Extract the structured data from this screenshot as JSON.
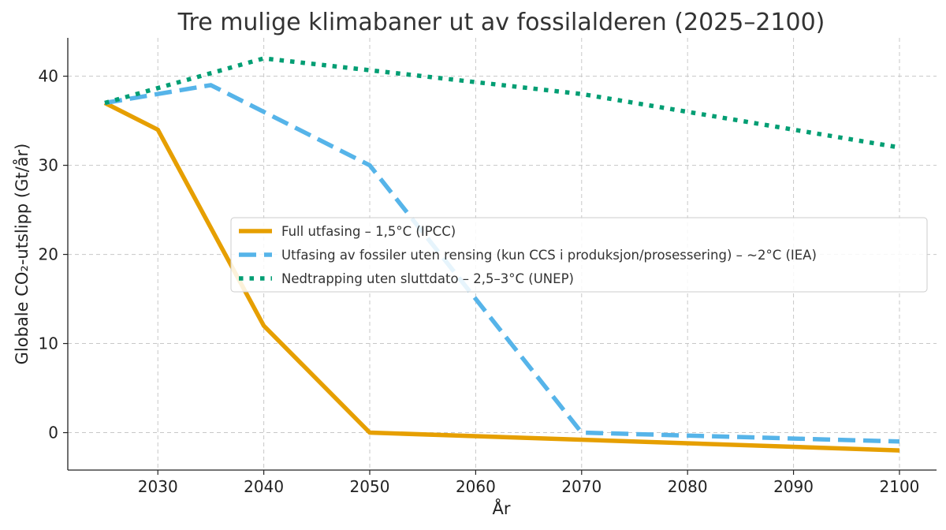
{
  "chart_data": {
    "type": "line",
    "title": "Tre mulige klimabaner ut av fossilalderen (2025–2100)",
    "xlabel": "År",
    "ylabel": "Globale CO₂-utslipp (Gt/år)",
    "xlim": [
      2021.5,
      2103.5
    ],
    "ylim": [
      -4.2,
      44.3
    ],
    "xticks": [
      2030,
      2040,
      2050,
      2060,
      2070,
      2080,
      2090,
      2100
    ],
    "yticks": [
      0,
      10,
      20,
      30,
      40
    ],
    "grid": true,
    "legend_position": "center-right",
    "series": [
      {
        "name": "Full utfasing – 1,5°C (IPCC)",
        "color": "#E69F00",
        "style": "solid",
        "x": [
          2025,
          2030,
          2040,
          2050,
          2100
        ],
        "y": [
          37,
          34,
          12,
          0,
          -2
        ]
      },
      {
        "name": "Utfasing av fossiler uten rensing (kun CCS i produksjon/prosessering) – ~2°C (IEA)",
        "color": "#56B4E9",
        "style": "dashed",
        "x": [
          2025,
          2030,
          2035,
          2040,
          2050,
          2070,
          2100
        ],
        "y": [
          37,
          38,
          39,
          36,
          30,
          0,
          -1
        ]
      },
      {
        "name": "Nedtrapping uten sluttdato – 2,5–3°C (UNEP)",
        "color": "#009E73",
        "style": "dotted",
        "x": [
          2025,
          2040,
          2070,
          2100
        ],
        "y": [
          37,
          42,
          38,
          32
        ]
      }
    ]
  }
}
